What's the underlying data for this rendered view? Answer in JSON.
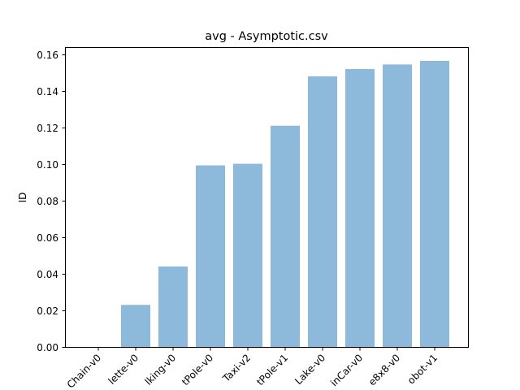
{
  "chart_data": {
    "type": "bar",
    "title": "avg - Asymptotic.csv",
    "xlabel": "",
    "ylabel": "ID",
    "ylim": [
      0,
      0.164
    ],
    "yticks": [
      "0.00",
      "0.02",
      "0.04",
      "0.06",
      "0.08",
      "0.10",
      "0.12",
      "0.14",
      "0.16"
    ],
    "ytick_values": [
      0,
      0.02,
      0.04,
      0.06,
      0.08,
      0.1,
      0.12,
      0.14,
      0.16
    ],
    "categories": [
      "Chain-v0",
      "lette-v0",
      "lking-v0",
      "tPole-v0",
      "Taxi-v2",
      "tPole-v1",
      "Lake-v0",
      "inCar-v0",
      "e8x8-v0",
      "obot-v1"
    ],
    "values": [
      0.0,
      0.023,
      0.044,
      0.0993,
      0.1002,
      0.121,
      0.148,
      0.152,
      0.1545,
      0.1565
    ],
    "bar_color": "#8db9da",
    "grid": false,
    "legend": "none"
  }
}
